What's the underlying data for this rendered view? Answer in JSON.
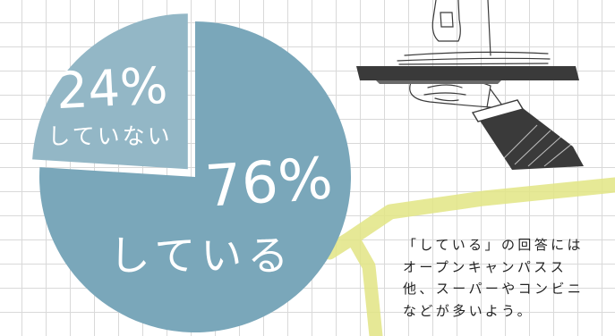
{
  "chart_data": {
    "type": "pie",
    "slices": [
      {
        "label": "している",
        "value": 76,
        "value_text": "76%",
        "color": "#7aa7ba"
      },
      {
        "label": "していない",
        "value": 24,
        "value_text": "24%",
        "color": "#93b7c6"
      }
    ]
  },
  "caption": {
    "lines": [
      "「している」の回答には",
      "オープンキャンパスス",
      "他、スーパーやコンビニ",
      "などが多いよう。"
    ]
  },
  "colors": {
    "highlight": "#e2e584",
    "illustration_dark": "#3a3a3a",
    "grid": "#d9d9d9"
  },
  "illustration": {
    "icon": "waiter-hand-serving-tray-icon"
  }
}
